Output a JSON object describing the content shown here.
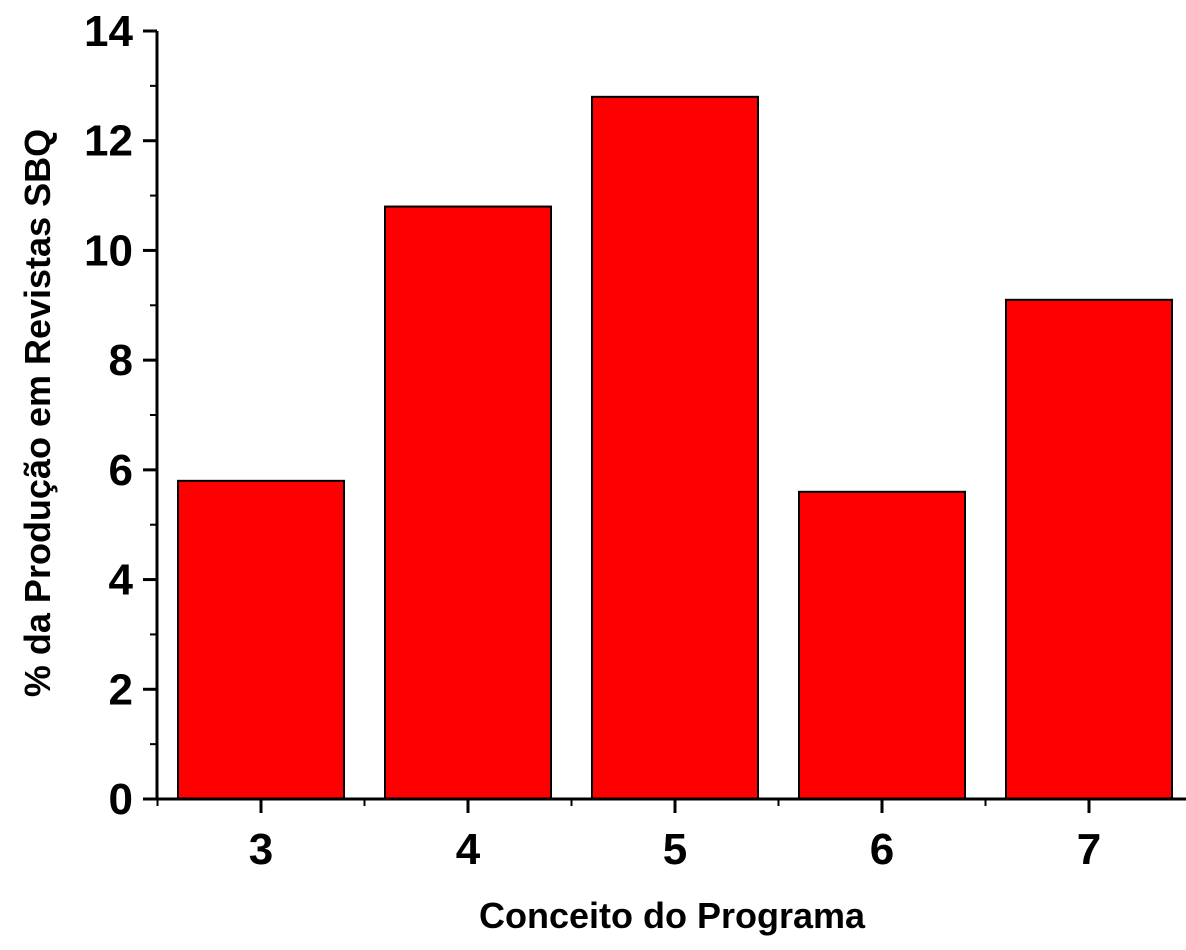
{
  "chart_data": {
    "type": "bar",
    "title": "",
    "xlabel": "Conceito do Programa",
    "ylabel": "% da Produção em Revistas SBQ",
    "categories": [
      "3",
      "4",
      "5",
      "6",
      "7"
    ],
    "values": [
      5.8,
      10.8,
      12.8,
      5.6,
      9.1
    ],
    "ylim": [
      0,
      14
    ],
    "yticks": [
      "0",
      "2",
      "4",
      "6",
      "8",
      "10",
      "12",
      "14"
    ],
    "grid": false,
    "legend": "none",
    "bar_color": "#ff0000",
    "bar_edge_color": "#000000"
  }
}
